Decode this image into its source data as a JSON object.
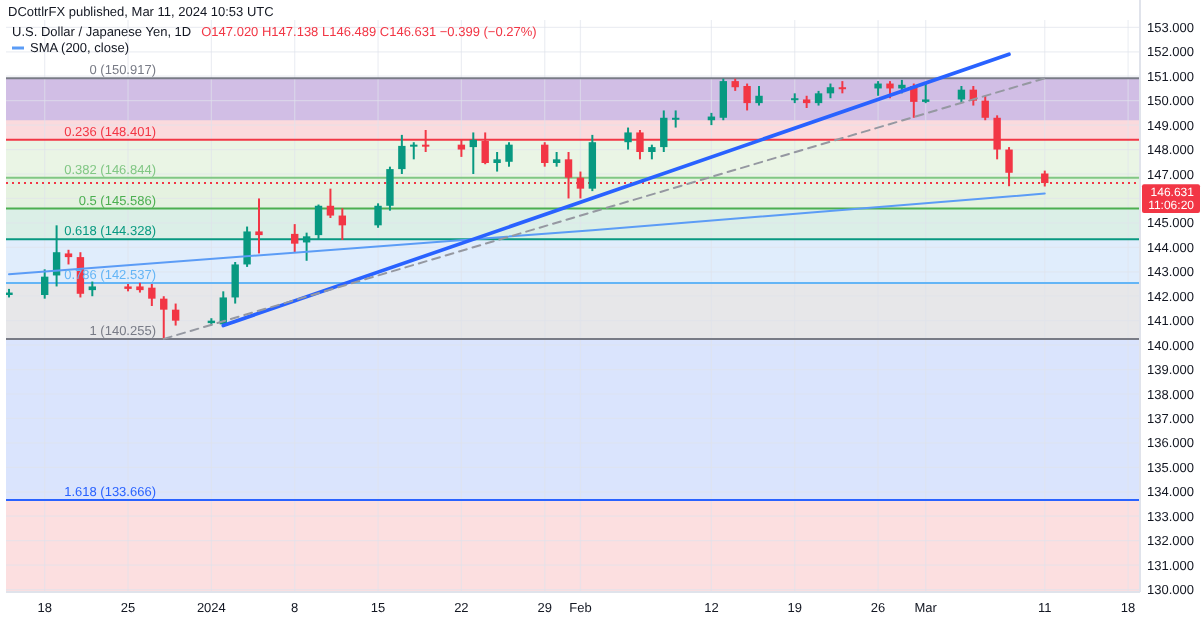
{
  "chart_data": {
    "type": "candlestick",
    "title": "U.S. Dollar / Japanese Yen, 1D",
    "subtitle": "O147.020 H147.138 L146.489 C146.631 −0.399 (−0.27%)",
    "annotations": [
      "DCottlrFX published, Mar 11, 2024 10:53 UTC",
      "11:06:20"
    ],
    "xlim": [
      "2023-12-14T18:00",
      "2024-03-19"
    ],
    "xticks": [
      {
        "value": "2023-12-18",
        "label": "18"
      },
      {
        "value": "2023-12-25",
        "label": "25"
      },
      {
        "value": "2024-01-01",
        "label": "2024"
      },
      {
        "value": "2024-01-08",
        "label": "8"
      },
      {
        "value": "2024-01-15",
        "label": "15"
      },
      {
        "value": "2024-01-22",
        "label": "22"
      },
      {
        "value": "2024-01-29",
        "label": "29"
      },
      {
        "value": "2024-02-01",
        "label": "Feb"
      },
      {
        "value": "2024-02-12",
        "label": "12"
      },
      {
        "value": "2024-02-19",
        "label": "19"
      },
      {
        "value": "2024-02-26",
        "label": "26"
      },
      {
        "value": "2024-03-01",
        "label": "Mar"
      },
      {
        "value": "2024-03-11",
        "label": "11"
      },
      {
        "value": "2024-03-18",
        "label": "18"
      }
    ],
    "ylim": [
      129.9,
      153.3
    ],
    "yticks": [
      {
        "value": 130,
        "label": "130.000"
      },
      {
        "value": 131,
        "label": "131.000"
      },
      {
        "value": 132,
        "label": "132.000"
      },
      {
        "value": 133,
        "label": "133.000"
      },
      {
        "value": 134,
        "label": "134.000"
      },
      {
        "value": 135,
        "label": "135.000"
      },
      {
        "value": 136,
        "label": "136.000"
      },
      {
        "value": 137,
        "label": "137.000"
      },
      {
        "value": 138,
        "label": "138.000"
      },
      {
        "value": 139,
        "label": "139.000"
      },
      {
        "value": 140,
        "label": "140.000"
      },
      {
        "value": 141,
        "label": "141.000"
      },
      {
        "value": 142,
        "label": "142.000"
      },
      {
        "value": 143,
        "label": "143.000"
      },
      {
        "value": 144,
        "label": "144.000"
      },
      {
        "value": 145,
        "label": "145.000"
      },
      {
        "value": 146,
        "label": null
      },
      {
        "value": 147,
        "label": "147.000"
      },
      {
        "value": 148,
        "label": "148.000"
      },
      {
        "value": 149,
        "label": "149.000"
      },
      {
        "value": 150,
        "label": "150.000"
      },
      {
        "value": 151,
        "label": "151.000"
      },
      {
        "value": 152,
        "label": "152.000"
      },
      {
        "value": 153,
        "label": "153.000"
      }
    ],
    "grid": true,
    "legend": "top left",
    "bands": [
      {
        "axis": "y",
        "from": 148.401,
        "to": 150.917,
        "color": "#fad4d7"
      },
      {
        "axis": "y",
        "from": 146.844,
        "to": 148.401,
        "color": "#e6f3e0"
      },
      {
        "axis": "y",
        "from": 145.586,
        "to": 146.844,
        "color": "#e0f0da"
      },
      {
        "axis": "y",
        "from": 144.328,
        "to": 145.586,
        "color": "#d5ece3"
      },
      {
        "axis": "y",
        "from": 142.537,
        "to": 144.328,
        "color": "#dbeafc"
      },
      {
        "axis": "y",
        "from": 140.255,
        "to": 142.537,
        "color": "#e3e3e5"
      },
      {
        "axis": "y",
        "from": 133.666,
        "to": 140.255,
        "color": "#d3dffd"
      },
      {
        "axis": "y",
        "from": 129.9,
        "to": 133.666,
        "color": "#fbd9db"
      },
      {
        "axis": "y",
        "from": 149.2,
        "to": 150.917,
        "color": "#c9b8e6"
      }
    ],
    "ref_lines": [
      {
        "axis": "y",
        "value": 150.917,
        "label": "0 (150.917)",
        "color": "#787b86"
      },
      {
        "axis": "y",
        "value": 148.401,
        "label": "0.236 (148.401)",
        "color": "#f23645"
      },
      {
        "axis": "y",
        "value": 146.844,
        "label": "0.382 (146.844)",
        "color": "#81c784"
      },
      {
        "axis": "y",
        "value": 145.586,
        "label": "0.5 (145.586)",
        "color": "#4caf50"
      },
      {
        "axis": "y",
        "value": 144.328,
        "label": "0.618 (144.328)",
        "color": "#089981"
      },
      {
        "axis": "y",
        "value": 142.537,
        "label": "0.786 (142.537)",
        "color": "#64b5f6"
      },
      {
        "axis": "y",
        "value": 140.255,
        "label": "1 (140.255)",
        "color": "#787b86"
      },
      {
        "axis": "y",
        "value": 133.666,
        "label": "1.618 (133.666)",
        "color": "#2962ff"
      },
      {
        "axis": "y",
        "value": 146.631,
        "label": "146.631",
        "color": "#f23645",
        "line_style": "dotted"
      }
    ],
    "series": [
      {
        "x": [
          "2023-12-15",
          "2023-12-18",
          "2023-12-19",
          "2023-12-20",
          "2023-12-21",
          "2023-12-22",
          "2023-12-25",
          "2023-12-26",
          "2023-12-27",
          "2023-12-28",
          "2023-12-29",
          "2024-01-01",
          "2024-01-02",
          "2024-01-03",
          "2024-01-04",
          "2024-01-05",
          "2024-01-08",
          "2024-01-09",
          "2024-01-10",
          "2024-01-11",
          "2024-01-12",
          "2024-01-15",
          "2024-01-16",
          "2024-01-17",
          "2024-01-18",
          "2024-01-19",
          "2024-01-22",
          "2024-01-23",
          "2024-01-24",
          "2024-01-25",
          "2024-01-26",
          "2024-01-29",
          "2024-01-30",
          "2024-01-31",
          "2024-02-01",
          "2024-02-02",
          "2024-02-05",
          "2024-02-06",
          "2024-02-07",
          "2024-02-08",
          "2024-02-09",
          "2024-02-12",
          "2024-02-13",
          "2024-02-14",
          "2024-02-15",
          "2024-02-16",
          "2024-02-19",
          "2024-02-20",
          "2024-02-21",
          "2024-02-22",
          "2024-02-23",
          "2024-02-26",
          "2024-02-27",
          "2024-02-28",
          "2024-02-29",
          "2024-03-01",
          "2024-03-04",
          "2024-03-05",
          "2024-03-06",
          "2024-03-07",
          "2024-03-08",
          "2024-03-11"
        ],
        "ohlc": [
          [
            142.05,
            142.3,
            141.95,
            142.15
          ],
          [
            142.05,
            143.1,
            141.9,
            142.8
          ],
          [
            142.85,
            144.9,
            142.4,
            143.8
          ],
          [
            143.75,
            143.9,
            143.3,
            143.6
          ],
          [
            143.6,
            143.8,
            141.95,
            142.1
          ],
          [
            142.25,
            142.6,
            142.0,
            142.4
          ],
          [
            142.4,
            142.5,
            142.2,
            142.3
          ],
          [
            142.4,
            142.55,
            142.15,
            142.25
          ],
          [
            142.35,
            142.5,
            141.6,
            141.9
          ],
          [
            141.9,
            142.0,
            140.255,
            141.45
          ],
          [
            141.45,
            141.7,
            140.8,
            141.0
          ],
          [
            140.9,
            141.1,
            140.8,
            141.0
          ],
          [
            140.85,
            142.2,
            140.8,
            141.95
          ],
          [
            141.95,
            143.4,
            141.7,
            143.3
          ],
          [
            143.3,
            144.85,
            143.2,
            144.65
          ],
          [
            144.65,
            146.0,
            143.75,
            144.5
          ],
          [
            144.55,
            144.95,
            143.8,
            144.15
          ],
          [
            144.2,
            144.6,
            143.45,
            144.45
          ],
          [
            144.5,
            145.75,
            144.3,
            145.7
          ],
          [
            145.7,
            146.4,
            145.2,
            145.3
          ],
          [
            145.3,
            145.6,
            144.3,
            144.9
          ],
          [
            144.9,
            145.8,
            144.8,
            145.7
          ],
          [
            145.7,
            147.3,
            145.5,
            147.2
          ],
          [
            147.2,
            148.6,
            147.0,
            148.15
          ],
          [
            148.15,
            148.3,
            147.6,
            148.2
          ],
          [
            148.2,
            148.8,
            147.9,
            148.15
          ],
          [
            148.2,
            148.4,
            147.7,
            148.0
          ],
          [
            148.1,
            148.7,
            147.0,
            148.4
          ],
          [
            148.35,
            148.7,
            147.4,
            147.45
          ],
          [
            147.45,
            147.9,
            147.1,
            147.6
          ],
          [
            147.5,
            148.3,
            147.3,
            148.2
          ],
          [
            148.2,
            148.3,
            147.3,
            147.45
          ],
          [
            147.45,
            147.9,
            147.3,
            147.6
          ],
          [
            147.6,
            147.9,
            146.0,
            146.85
          ],
          [
            146.85,
            147.1,
            146.0,
            146.4
          ],
          [
            146.4,
            148.6,
            146.3,
            148.3
          ],
          [
            148.3,
            148.9,
            148.0,
            148.7
          ],
          [
            148.7,
            148.8,
            147.6,
            147.9
          ],
          [
            147.9,
            148.2,
            147.6,
            148.1
          ],
          [
            148.1,
            149.6,
            147.9,
            149.3
          ],
          [
            149.25,
            149.6,
            148.9,
            149.3
          ],
          [
            149.2,
            149.5,
            149.0,
            149.35
          ],
          [
            149.3,
            150.9,
            149.2,
            150.8
          ],
          [
            150.8,
            150.9,
            150.4,
            150.55
          ],
          [
            150.6,
            150.7,
            149.6,
            149.9
          ],
          [
            149.9,
            150.6,
            149.8,
            150.2
          ],
          [
            150.05,
            150.3,
            149.9,
            150.1
          ],
          [
            150.05,
            150.2,
            149.7,
            149.9
          ],
          [
            149.9,
            150.4,
            149.8,
            150.3
          ],
          [
            150.3,
            150.7,
            150.1,
            150.55
          ],
          [
            150.55,
            150.8,
            150.3,
            150.5
          ],
          [
            150.5,
            150.8,
            150.2,
            150.7
          ],
          [
            150.7,
            150.8,
            150.1,
            150.5
          ],
          [
            150.5,
            150.85,
            150.3,
            150.65
          ],
          [
            150.6,
            150.7,
            149.3,
            149.95
          ],
          [
            149.95,
            150.7,
            149.9,
            150.05
          ],
          [
            150.05,
            150.6,
            149.9,
            150.45
          ],
          [
            150.45,
            150.6,
            149.8,
            150.0
          ],
          [
            150.0,
            150.2,
            149.2,
            149.3
          ],
          [
            149.3,
            149.4,
            147.6,
            148.0
          ],
          [
            148.0,
            148.1,
            146.5,
            147.05
          ],
          [
            147.02,
            147.138,
            146.489,
            146.631
          ]
        ],
        "colors": [
          "#089981",
          "#089981",
          "#089981",
          "#f23645",
          "#f23645",
          "#089981",
          "#f23645",
          "#f23645",
          "#f23645",
          "#f23645",
          "#f23645",
          "#089981",
          "#089981",
          "#089981",
          "#089981",
          "#f23645",
          "#f23645",
          "#089981",
          "#089981",
          "#f23645",
          "#f23645",
          "#089981",
          "#089981",
          "#089981",
          "#089981",
          "#f23645",
          "#f23645",
          "#089981",
          "#f23645",
          "#089981",
          "#089981",
          "#f23645",
          "#089981",
          "#f23645",
          "#f23645",
          "#089981",
          "#089981",
          "#f23645",
          "#089981",
          "#089981",
          "#089981",
          "#089981",
          "#089981",
          "#f23645",
          "#f23645",
          "#089981",
          "#089981",
          "#f23645",
          "#089981",
          "#089981",
          "#f23645",
          "#089981",
          "#f23645",
          "#089981",
          "#f23645",
          "#089981",
          "#089981",
          "#f23645",
          "#f23645",
          "#f23645",
          "#f23645",
          "#f23645"
        ]
      },
      {
        "type": "line",
        "name": "SMA (200, close)",
        "color": "#5b9cf6",
        "x": [
          "2023-12-15",
          "2024-02-02",
          "2024-03-11"
        ],
        "values": [
          142.9,
          144.7,
          146.2
        ]
      },
      {
        "type": "line",
        "color": "#2962ff",
        "x": [
          "2024-01-02",
          "2024-03-08"
        ],
        "values": [
          140.8,
          151.9
        ]
      },
      {
        "type": "line",
        "color": "#9598a1",
        "line_style": "dashed",
        "x": [
          "2023-12-28",
          "2024-03-11"
        ],
        "values": [
          140.255,
          150.917
        ]
      }
    ]
  }
}
